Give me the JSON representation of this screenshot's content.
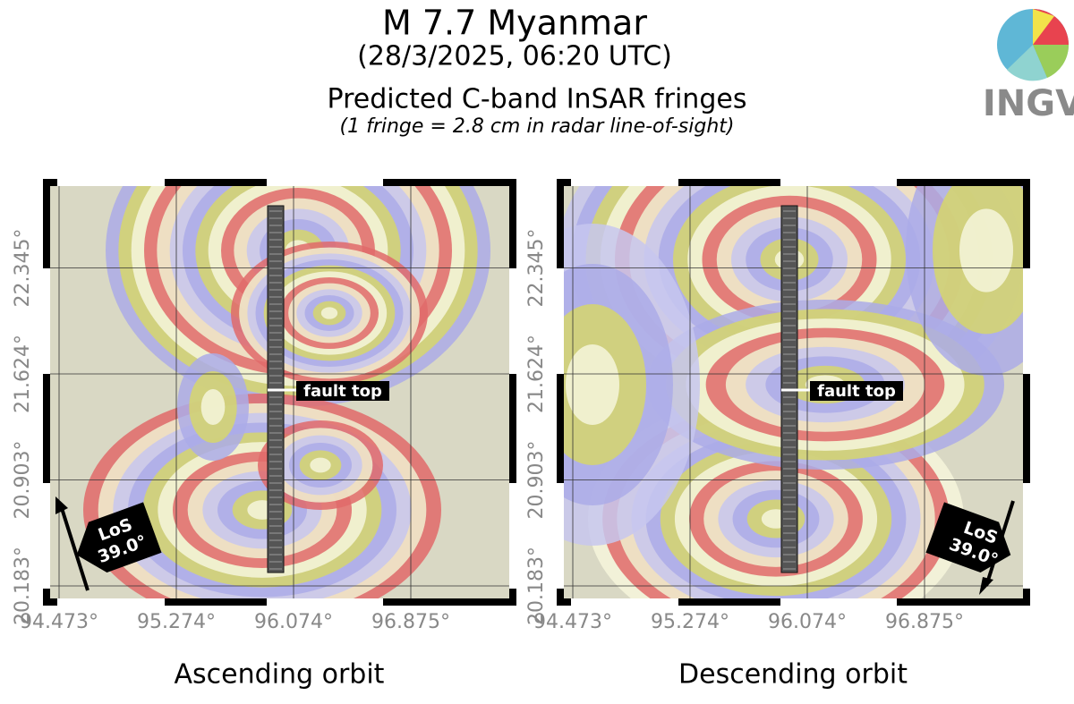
{
  "header": {
    "title": "M 7.7 Myanmar",
    "subtitle": "(28/3/2025, 06:20 UTC)",
    "heading": "Predicted C-band InSAR fringes",
    "note": "(1 fringe = 2.8 cm in radar line-of-sight)"
  },
  "logo": "INGV",
  "panels": [
    {
      "caption": "Ascending orbit",
      "fault_label": "fault top",
      "los": [
        "LoS",
        "39.0°"
      ],
      "xticks": [
        "94.473°",
        "95.274°",
        "96.074°",
        "96.875°"
      ],
      "yticks": [
        "20.183°",
        "20.903°",
        "21.624°",
        "22.345°"
      ]
    },
    {
      "caption": "Descending orbit",
      "fault_label": "fault top",
      "los": [
        "LoS",
        "39.0°"
      ],
      "xticks": [
        "94.473°",
        "95.274°",
        "96.074°",
        "96.875°"
      ],
      "yticks": [
        "20.183°",
        "20.903°",
        "21.624°",
        "22.345°"
      ]
    }
  ]
}
